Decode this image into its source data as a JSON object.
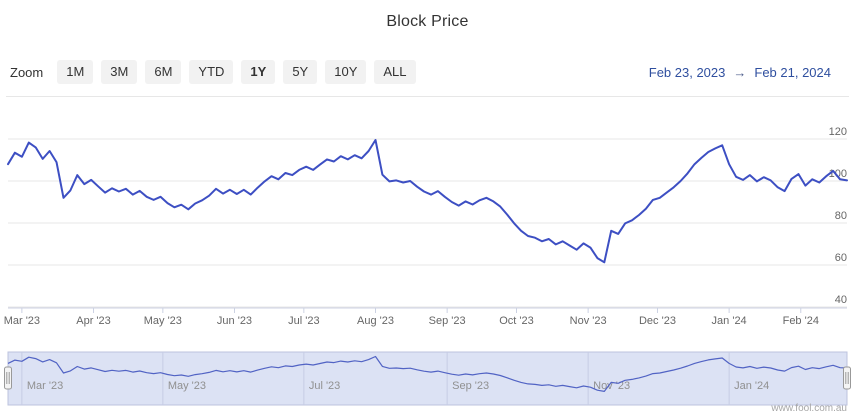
{
  "header": {
    "title": "Block Price"
  },
  "toolbar": {
    "zoom_label": "Zoom",
    "buttons": [
      "1M",
      "3M",
      "6M",
      "YTD",
      "1Y",
      "5Y",
      "10Y",
      "ALL"
    ],
    "selected": "1Y"
  },
  "range_display": {
    "from": "Feb 23, 2023",
    "separator": "→",
    "to": "Feb 21, 2024"
  },
  "watermark": "www.fool.com.au",
  "colors": {
    "line": "#3d4fc3",
    "navigator_line": "#5163c4",
    "navigator_mask": "#dce2f4",
    "navigator_outline": "#bdc3de",
    "navigator_grid": "#c6cce4",
    "grid": "#e7e7e7",
    "axis": "#ccd2e3",
    "label": "#666666",
    "nav_label": "#909090",
    "range_text": "#2f4f9f"
  },
  "chart_data": {
    "type": "line",
    "title": "Block Price",
    "series_name": "Block Price",
    "x_start": "Feb 23, 2023",
    "x_end": "Feb 21, 2024",
    "total_days": 363,
    "step_days": 3,
    "grid": true,
    "legend": false,
    "ylim": [
      40,
      129
    ],
    "yticks": [
      40,
      60,
      80,
      100,
      120
    ],
    "xticks": [
      {
        "label": "Mar '23",
        "day": 6
      },
      {
        "label": "Apr '23",
        "day": 37
      },
      {
        "label": "May '23",
        "day": 67
      },
      {
        "label": "Jun '23",
        "day": 98
      },
      {
        "label": "Jul '23",
        "day": 128
      },
      {
        "label": "Aug '23",
        "day": 159
      },
      {
        "label": "Sep '23",
        "day": 190
      },
      {
        "label": "Oct '23",
        "day": 220
      },
      {
        "label": "Nov '23",
        "day": 251
      },
      {
        "label": "Dec '23",
        "day": 281
      },
      {
        "label": "Jan '24",
        "day": 312
      },
      {
        "label": "Feb '24",
        "day": 343
      }
    ],
    "navigator_ticks": [
      {
        "label": "Mar '23",
        "day": 6
      },
      {
        "label": "May '23",
        "day": 67
      },
      {
        "label": "Jul '23",
        "day": 128
      },
      {
        "label": "Sep '23",
        "day": 190
      },
      {
        "label": "Nov '23",
        "day": 251
      },
      {
        "label": "Jan '24",
        "day": 312
      }
    ],
    "values": [
      108,
      113.5,
      111.5,
      118.3,
      116,
      110.5,
      114.3,
      109,
      92,
      95.5,
      102.8,
      98.5,
      100.5,
      97.5,
      94.5,
      96.5,
      95,
      96.3,
      93.5,
      95.3,
      92.5,
      91,
      92.5,
      89.5,
      87.5,
      88.7,
      86.5,
      89.3,
      90.8,
      93,
      96.3,
      94,
      95.8,
      93.8,
      95.8,
      93.5,
      96.8,
      99.8,
      102.3,
      100.8,
      103.8,
      102.8,
      105.3,
      106.8,
      105.3,
      107.8,
      110.3,
      109.3,
      111.8,
      110.3,
      112.3,
      110.8,
      114.3,
      119.5,
      103,
      99.8,
      100.3,
      99.3,
      100,
      97.3,
      95,
      93.5,
      95.2,
      92.5,
      90,
      88.3,
      90.3,
      88.8,
      90.8,
      92,
      90.3,
      87.8,
      84,
      79.8,
      76.3,
      73.8,
      73,
      71.3,
      72.4,
      69.8,
      71.3,
      69.3,
      67.3,
      70.3,
      68.3,
      63.3,
      61.3,
      76.3,
      74.8,
      79.8,
      81.3,
      83.8,
      86.8,
      91,
      92,
      94.5,
      97,
      100,
      103.6,
      108,
      111,
      113.8,
      115.5,
      117,
      108,
      102,
      100.5,
      102.8,
      99.8,
      101.8,
      100.3,
      97,
      95.2,
      101,
      103.3,
      97.8,
      100.8,
      99.3,
      102.3,
      104.8,
      100.8,
      100.3
    ]
  }
}
